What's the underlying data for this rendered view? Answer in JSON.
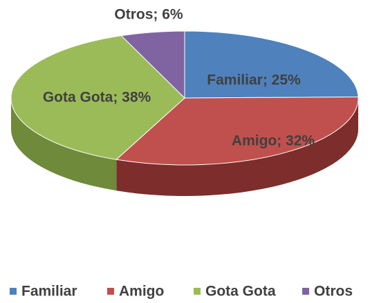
{
  "chart_data": {
    "type": "pie3d",
    "categories": [
      "Familiar",
      "Amigo",
      "Gota Gota",
      "Otros"
    ],
    "values": [
      25,
      32,
      38,
      6
    ],
    "value_labels": [
      "Familiar; 25%",
      "Amigo; 32%",
      "Gota Gota; 38%",
      "Otros; 6%"
    ],
    "colors": [
      "#4f81bd",
      "#c0504d",
      "#9bbb59",
      "#8064a2"
    ],
    "side_colors": [
      "#3a5f8c",
      "#7d2d2b",
      "#6e8a3a",
      "#5a4578"
    ],
    "legend": "bottom"
  }
}
